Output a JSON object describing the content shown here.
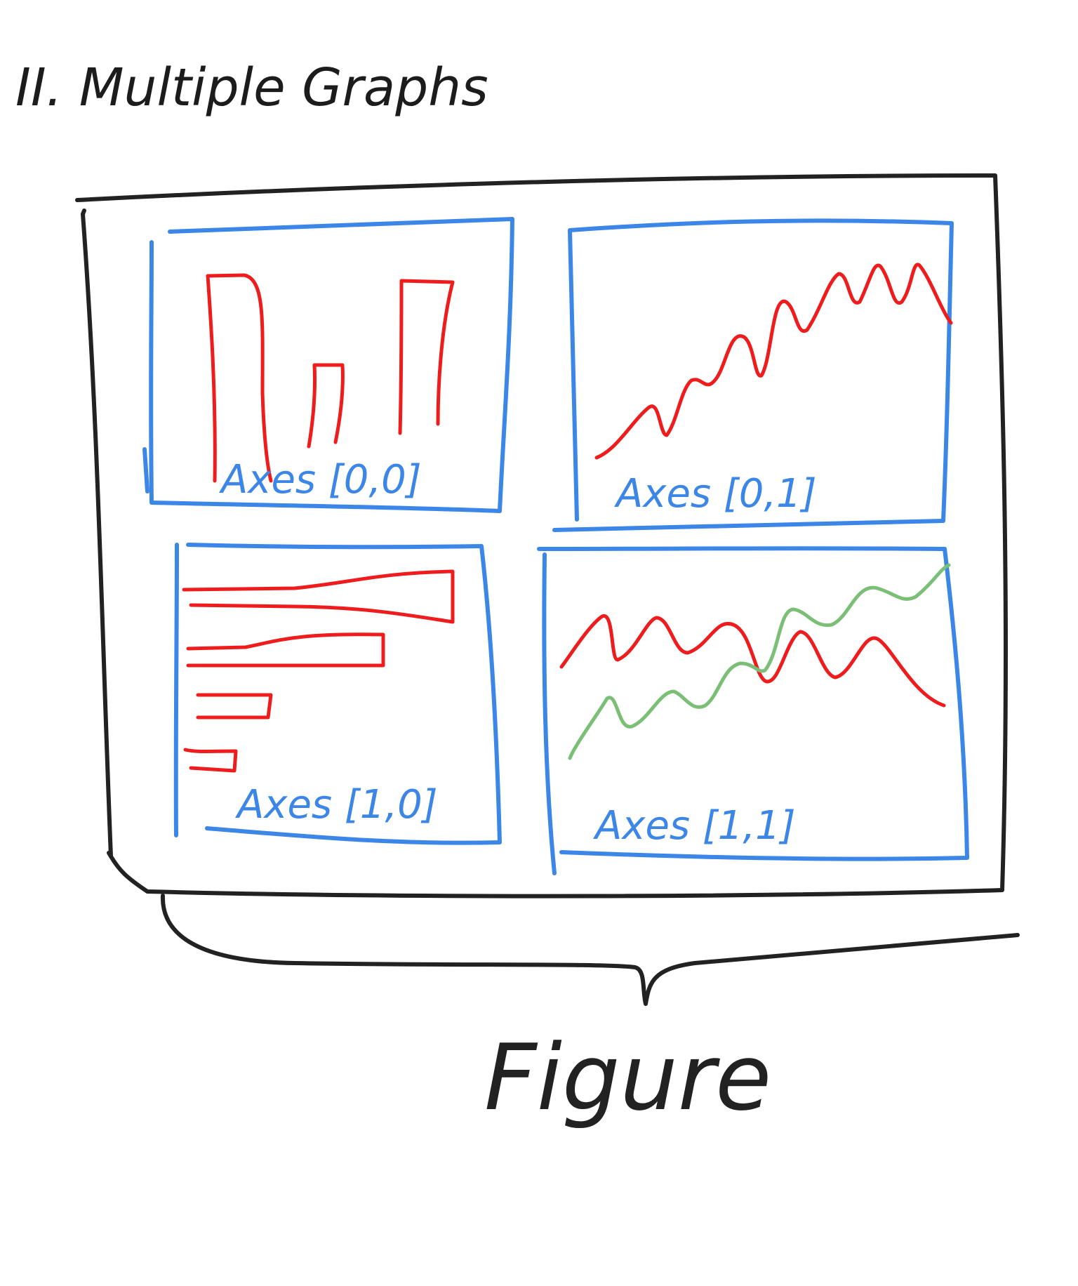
{
  "title": "II. Multiple Graphs",
  "figure_label": "Figure",
  "colors": {
    "figure_border": "#222222",
    "axes_border": "#3b86e6",
    "series_primary": "#ee1c1c",
    "series_secondary": "#7bbf76"
  },
  "axes": [
    {
      "id": "ax00",
      "label": "Axes [0,0]",
      "plot_type": "vertical-bar"
    },
    {
      "id": "ax01",
      "label": "Axes [0,1]",
      "plot_type": "line"
    },
    {
      "id": "ax10",
      "label": "Axes [1,0]",
      "plot_type": "horizontal-bar"
    },
    {
      "id": "ax11",
      "label": "Axes [1,1]",
      "plot_type": "multi-line"
    }
  ]
}
